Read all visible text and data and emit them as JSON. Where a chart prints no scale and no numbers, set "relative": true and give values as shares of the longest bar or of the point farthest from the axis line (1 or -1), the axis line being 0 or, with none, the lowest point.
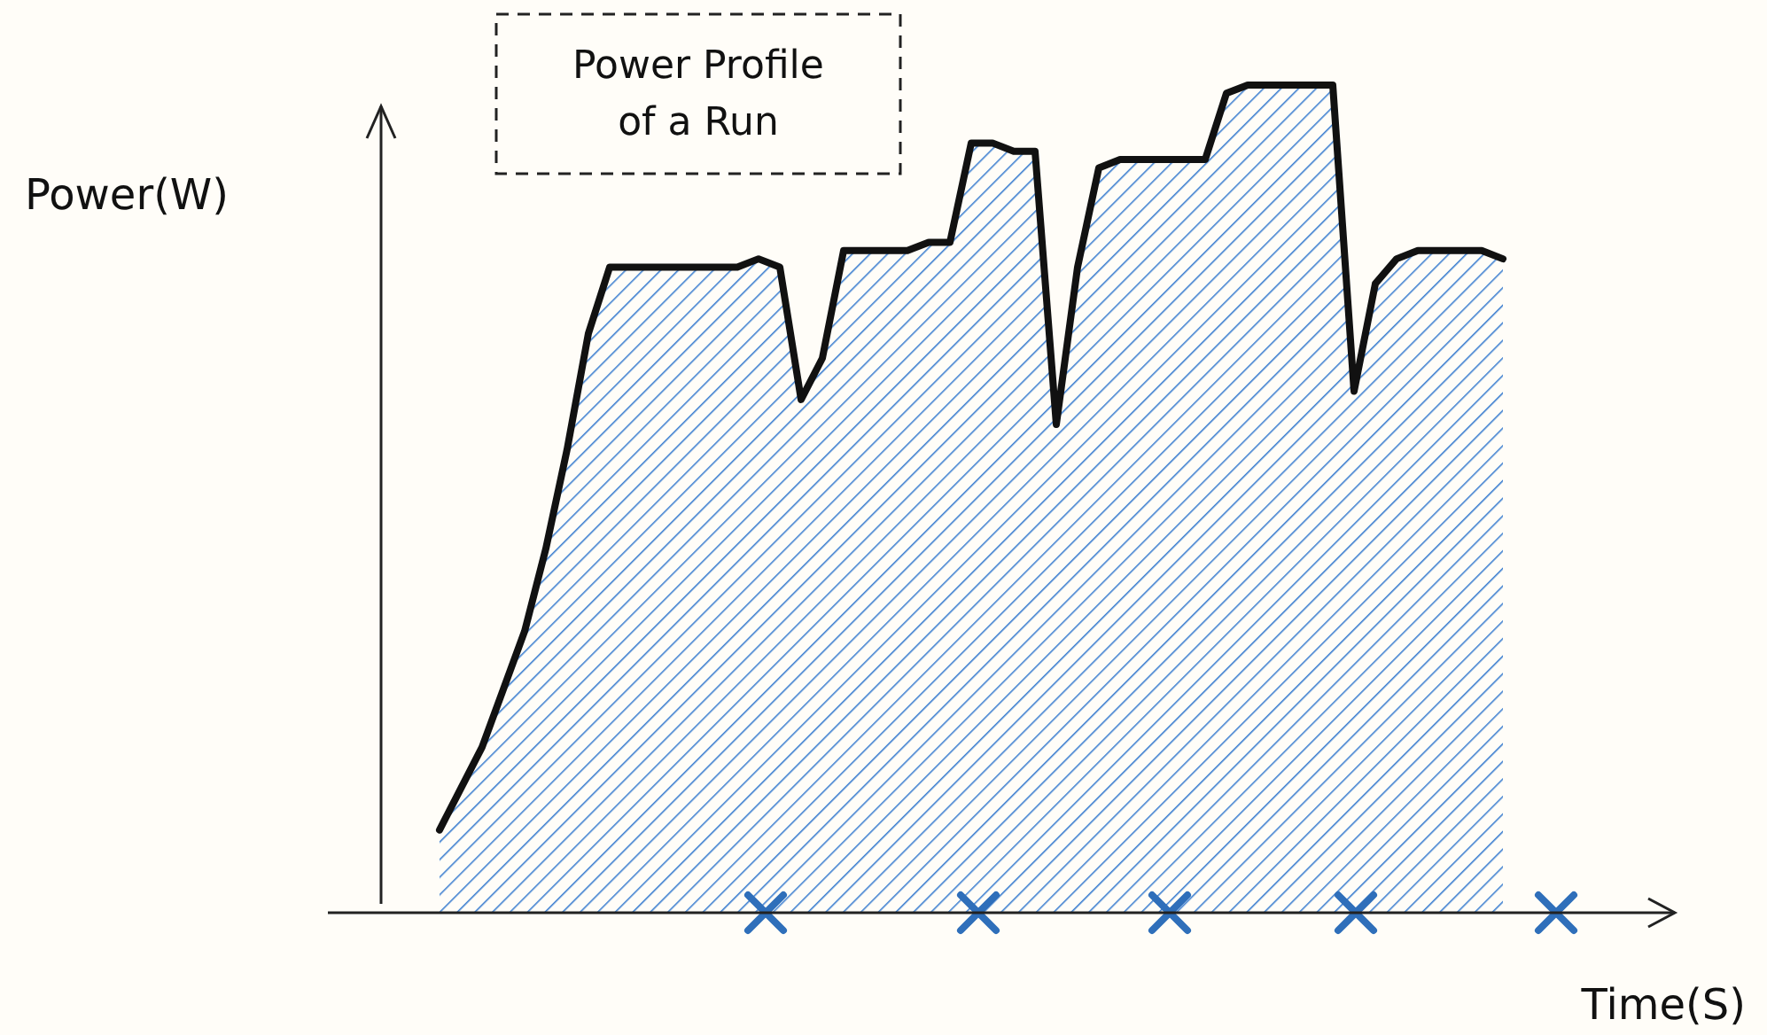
{
  "chart_data": {
    "type": "area",
    "title": "Power Profile of a Run",
    "xlabel": "Time(S)",
    "ylabel": "Power(W)",
    "relative": true,
    "categories": [
      null,
      null,
      null,
      null,
      null,
      null,
      null,
      null,
      null,
      null,
      null,
      null,
      null,
      null,
      null,
      null,
      null,
      null,
      null,
      null,
      null,
      null,
      null,
      null,
      null,
      null,
      null,
      null,
      null,
      null,
      null,
      null,
      null,
      null,
      null,
      null,
      null,
      null,
      null,
      null,
      null,
      null,
      null,
      null,
      null,
      null,
      null,
      null,
      null,
      null,
      null,
      null,
      null
    ],
    "series": [
      {
        "type": "area",
        "color": "#111111",
        "values": [
          0.1,
          0.15,
          0.2,
          0.27,
          0.34,
          0.44,
          0.56,
          0.7,
          0.78,
          0.78,
          0.78,
          0.78,
          0.78,
          0.78,
          0.78,
          0.79,
          0.78,
          0.62,
          0.67,
          0.8,
          0.8,
          0.8,
          0.8,
          0.81,
          0.81,
          0.93,
          0.93,
          0.92,
          0.92,
          0.59,
          0.78,
          0.9,
          0.91,
          0.91,
          0.91,
          0.91,
          0.91,
          0.99,
          1.0,
          1.0,
          1.0,
          1.0,
          1.0,
          0.63,
          0.76,
          0.79,
          0.8,
          0.8,
          0.8,
          0.8,
          0.79,
          null,
          null
        ]
      }
    ]
  }
}
